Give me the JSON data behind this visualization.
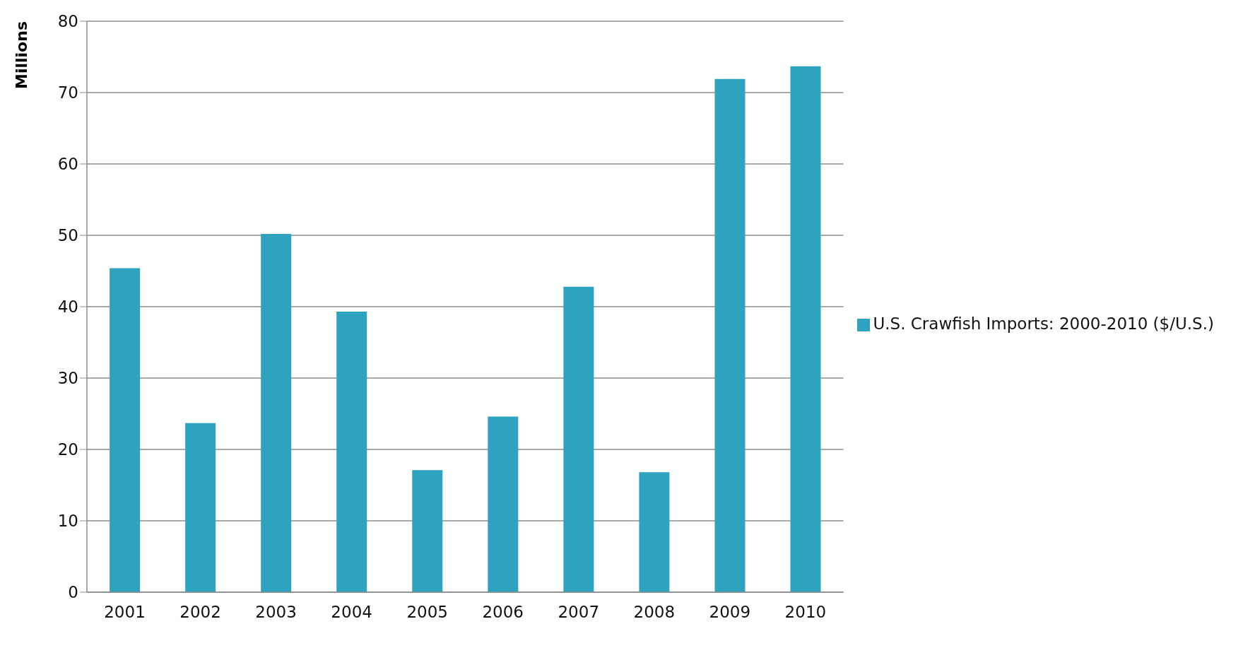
{
  "chart_data": {
    "type": "bar",
    "ylabel": "Millions",
    "categories": [
      "2001",
      "2002",
      "2003",
      "2004",
      "2005",
      "2006",
      "2007",
      "2008",
      "2009",
      "2010"
    ],
    "series": [
      {
        "name": "U.S. Crawfish Imports: 2000-2010 ($/U.S.)",
        "color": "#2ea3c0",
        "values": [
          45.4,
          23.7,
          50.2,
          39.3,
          17.1,
          24.6,
          42.8,
          16.8,
          71.9,
          73.7
        ]
      }
    ],
    "ylim": [
      0,
      80
    ],
    "yticks": [
      0,
      10,
      20,
      30,
      40,
      50,
      60,
      70,
      80
    ],
    "grid": "y",
    "legend": "right"
  }
}
